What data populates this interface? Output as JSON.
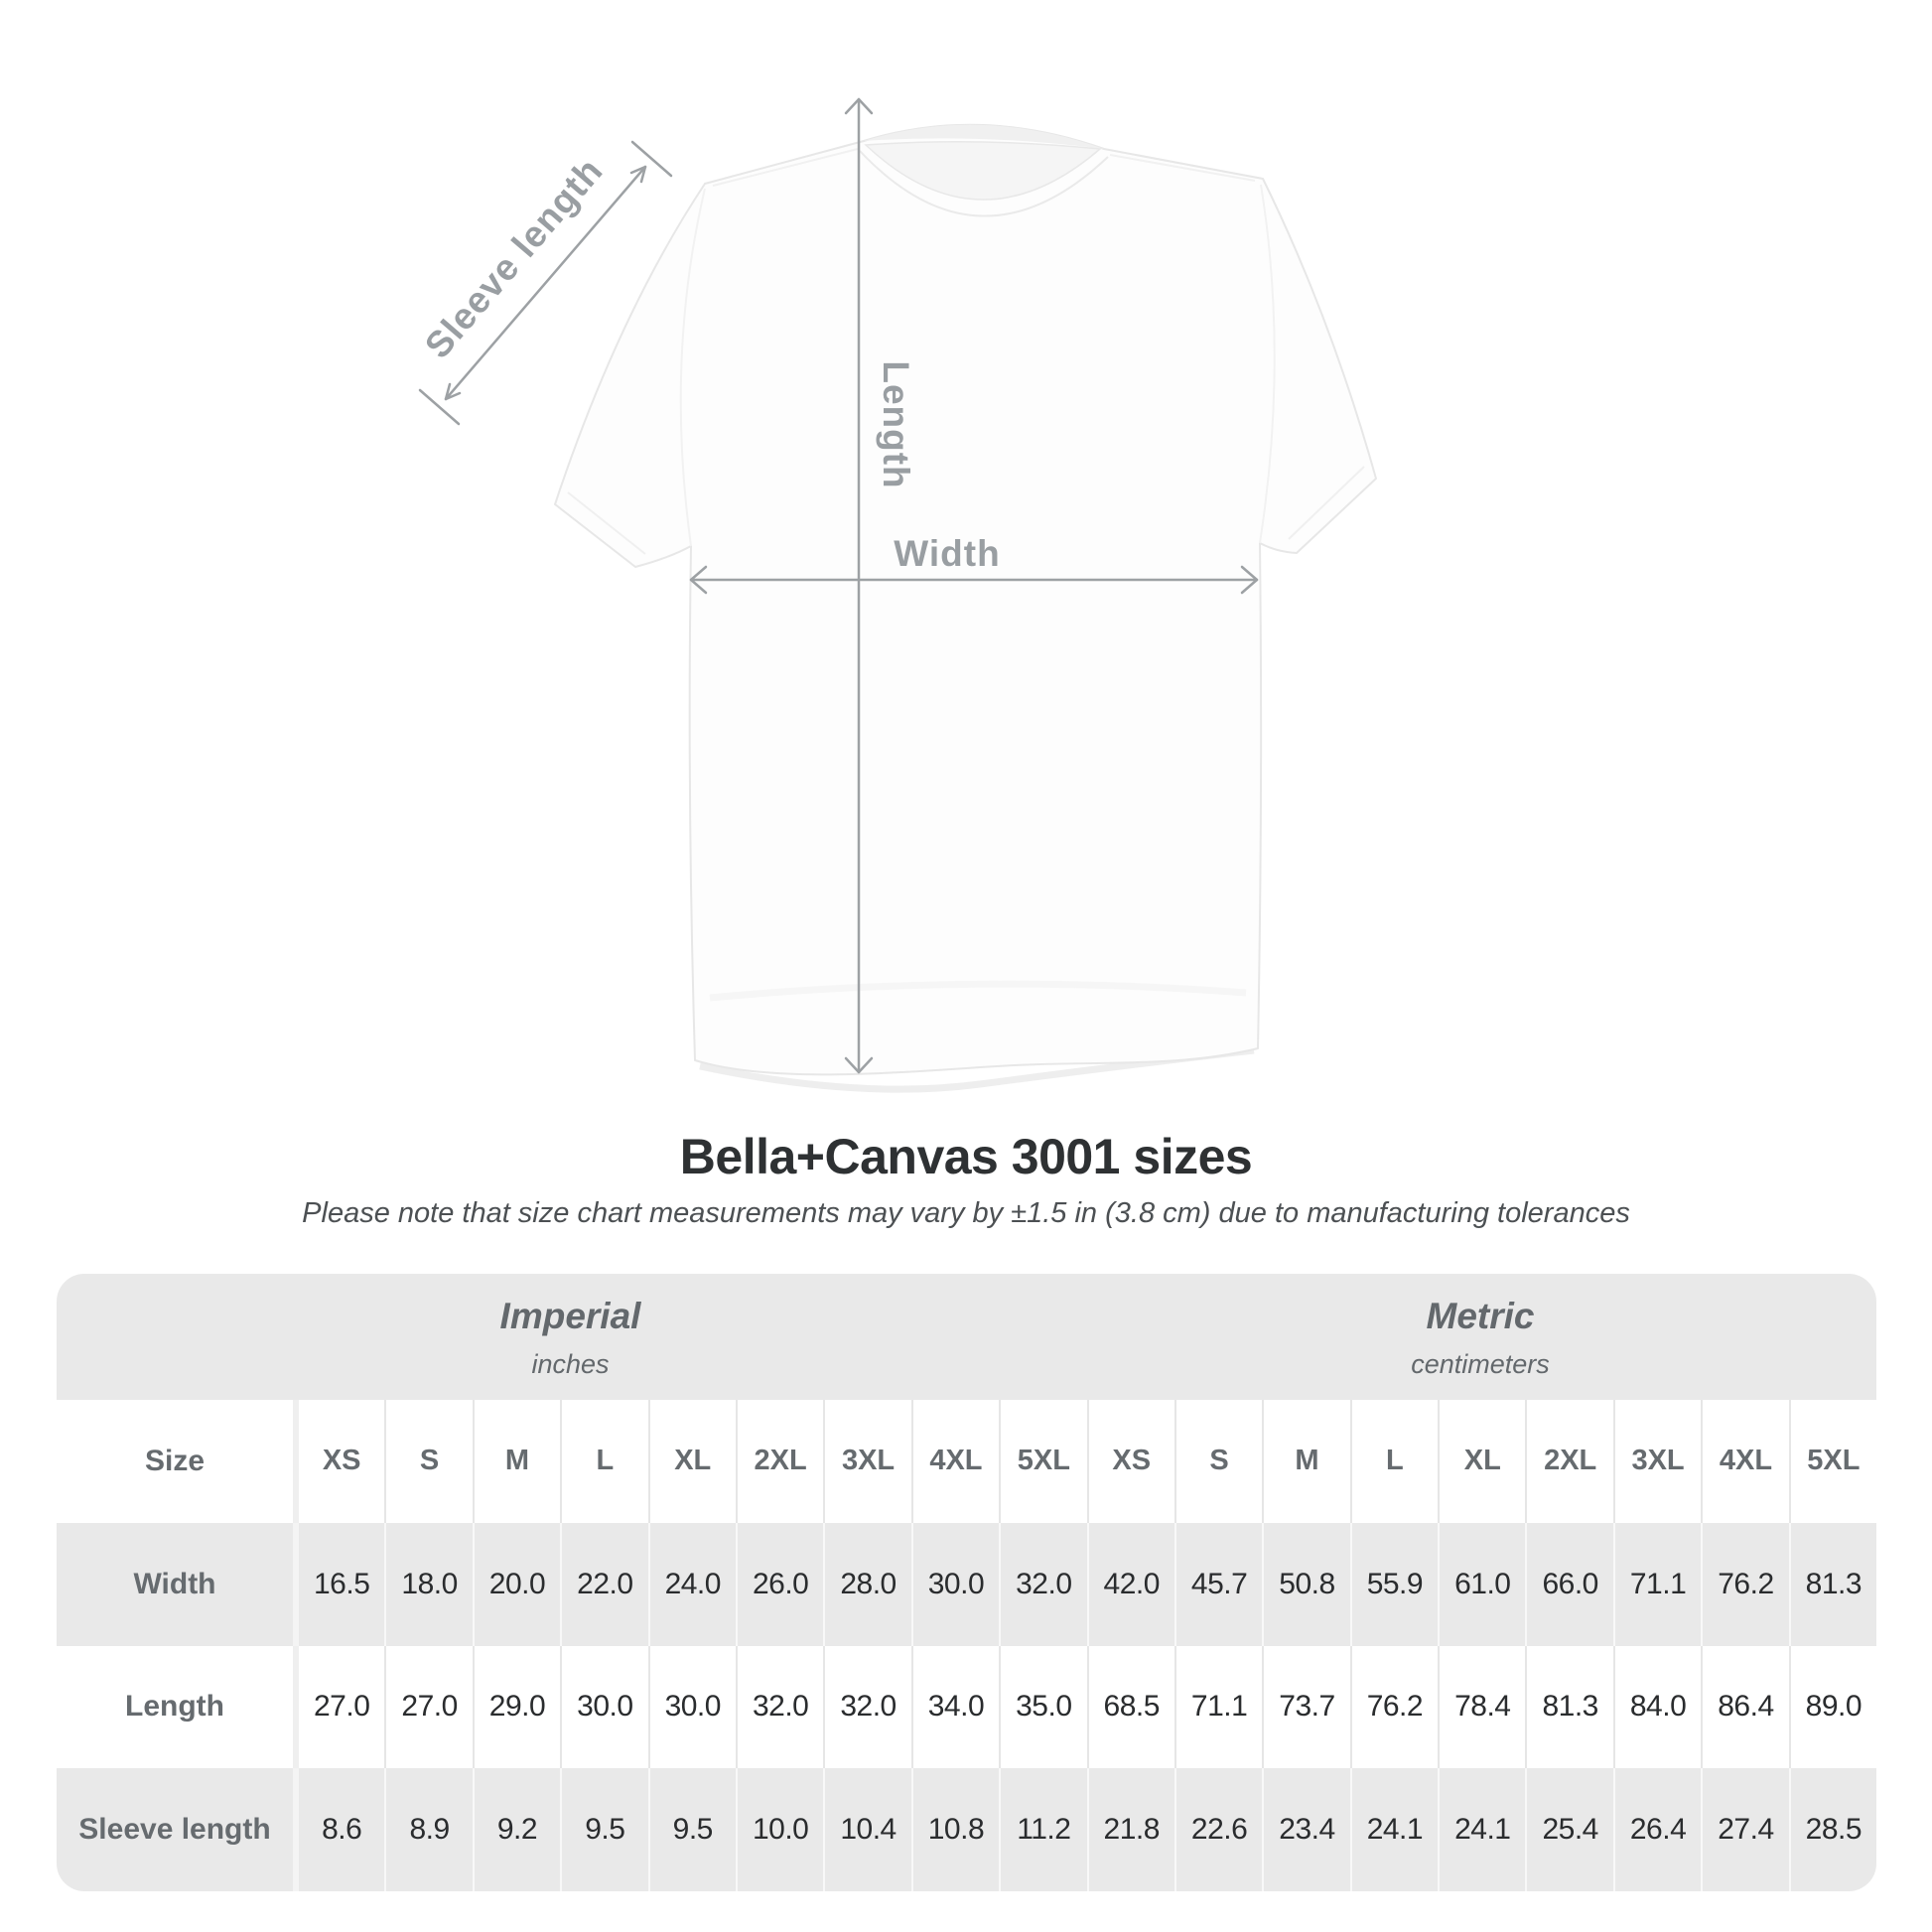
{
  "title": "Bella+Canvas 3001 sizes",
  "subtitle": "Please note that size chart measurements may vary by ±1.5 in (3.8 cm) due to manufacturing tolerances",
  "diagram": {
    "sleeve_length_label": "Sleeve length",
    "length_label": "Length",
    "width_label": "Width"
  },
  "table": {
    "size_header": "Size",
    "groups": [
      {
        "label": "Imperial",
        "sublabel": "inches"
      },
      {
        "label": "Metric",
        "sublabel": "centimeters"
      }
    ]
  },
  "chart_data": {
    "type": "table",
    "title": "Bella+Canvas 3001 sizes",
    "note": "Please note that size chart measurements may vary by ±1.5 in (3.8 cm) due to manufacturing tolerances",
    "column_groups": [
      {
        "name": "Imperial",
        "unit": "inches"
      },
      {
        "name": "Metric",
        "unit": "centimeters"
      }
    ],
    "sizes": [
      "XS",
      "S",
      "M",
      "L",
      "XL",
      "2XL",
      "3XL",
      "4XL",
      "5XL"
    ],
    "rows": [
      {
        "label": "Width",
        "imperial": [
          16.5,
          18.0,
          20.0,
          22.0,
          24.0,
          26.0,
          28.0,
          30.0,
          32.0
        ],
        "metric": [
          42.0,
          45.7,
          50.8,
          55.9,
          61.0,
          66.0,
          71.1,
          76.2,
          81.3
        ]
      },
      {
        "label": "Length",
        "imperial": [
          27.0,
          27.0,
          29.0,
          30.0,
          30.0,
          32.0,
          32.0,
          34.0,
          35.0
        ],
        "metric": [
          68.5,
          71.1,
          73.7,
          76.2,
          78.4,
          81.3,
          84.0,
          86.4,
          89.0
        ]
      },
      {
        "label": "Sleeve length",
        "imperial": [
          8.6,
          8.9,
          9.2,
          9.5,
          9.5,
          10.0,
          10.4,
          10.8,
          11.2
        ],
        "metric": [
          21.8,
          22.6,
          23.4,
          24.1,
          24.1,
          25.4,
          26.4,
          27.4,
          28.5
        ]
      }
    ]
  },
  "colors": {
    "band_gray": "#e9e9e9",
    "header_text": "#666b6f",
    "value_text": "#2a2c2e",
    "annotation_gray": "#999ea2",
    "title_text": "#2e3133"
  }
}
